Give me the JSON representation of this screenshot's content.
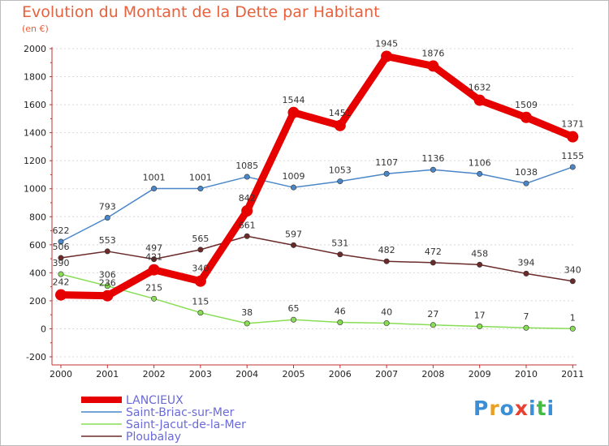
{
  "chart_data": {
    "type": "line",
    "title": "Evolution du Montant de la Dette par Habitant",
    "subtitle": "(en €)",
    "categories": [
      "2000",
      "2001",
      "2002",
      "2003",
      "2004",
      "2005",
      "2006",
      "2007",
      "2008",
      "2009",
      "2010",
      "2011"
    ],
    "y_ticks": [
      "-200",
      "0",
      "200",
      "400",
      "600",
      "800",
      "1000",
      "1200",
      "1400",
      "1600",
      "1800",
      "2000"
    ],
    "ylim": [
      -200,
      2000
    ],
    "grid": "horizontal dashed",
    "legend_position": "bottom-left",
    "series": [
      {
        "name": "LANCIEUX",
        "color": "#e60000",
        "values": [
          242,
          236,
          421,
          340,
          842,
          1544,
          1451,
          1945,
          1876,
          1632,
          1509,
          1371
        ],
        "labels": [
          "242",
          "236",
          "421",
          "340",
          "842",
          "1544",
          "1451",
          "1945",
          "1876",
          "1632",
          "1509",
          "1371"
        ]
      },
      {
        "name": "Saint-Briac-sur-Mer",
        "color": "#4a86c8",
        "values": [
          622,
          793,
          1001,
          1001,
          1085,
          1009,
          1053,
          1107,
          1136,
          1106,
          1038,
          1155
        ],
        "labels": [
          "622",
          "793",
          "1001",
          "1001",
          "1085",
          "1009",
          "1053",
          "1107",
          "1136",
          "1106",
          "1038",
          "1155"
        ]
      },
      {
        "name": "Saint-Jacut-de-la-Mer",
        "color": "#88dd55",
        "values": [
          390,
          306,
          215,
          115,
          38,
          65,
          46,
          40,
          27,
          17,
          7,
          1
        ],
        "labels": [
          "390",
          "306",
          "215",
          "115",
          "38",
          "65",
          "46",
          "40",
          "27",
          "17",
          "7",
          "1"
        ]
      },
      {
        "name": "Ploubalay",
        "color": "#6b2a2a",
        "values": [
          506,
          553,
          497,
          565,
          661,
          597,
          531,
          482,
          472,
          458,
          394,
          340
        ],
        "labels": [
          "506",
          "553",
          "497",
          "565",
          "661",
          "597",
          "531",
          "482",
          "472",
          "458",
          "394",
          "340"
        ]
      }
    ]
  },
  "logo": {
    "text": "Proxiti",
    "colors": [
      "#3b8fd6",
      "#e8a020",
      "#3b8fd6",
      "#e84030",
      "#3b8fd6",
      "#44bb44",
      "#3b8fd6"
    ]
  }
}
